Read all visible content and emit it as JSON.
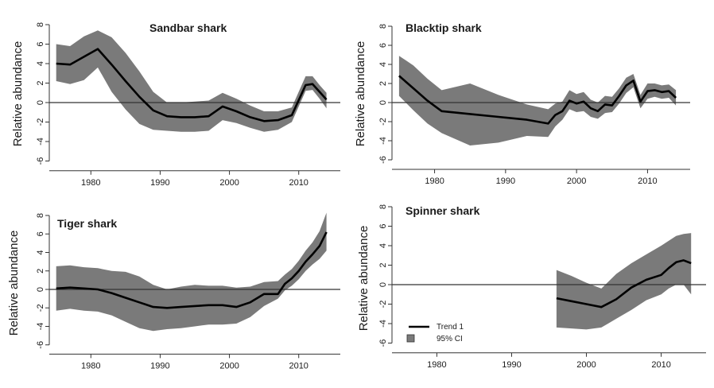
{
  "legend": {
    "trend_label": "Trend 1",
    "ci_label": "95% CI"
  },
  "colors": {
    "band": "#7a7a7a",
    "line": "#000000"
  },
  "chart_data": [
    {
      "type": "line",
      "title": "Sandbar shark",
      "ylabel": "Relative abundance",
      "xlabel": "",
      "xlim": [
        1974,
        2016
      ],
      "ylim": [
        -7,
        8
      ],
      "xticks": [
        1980,
        1990,
        2000,
        2010
      ],
      "yticks": [
        -6,
        -4,
        -2,
        0,
        2,
        4,
        6,
        8
      ],
      "reference_line": 0,
      "series": [
        {
          "x": [
            1975,
            1977,
            1979,
            1981,
            1983,
            1985,
            1987,
            1989,
            1991,
            1993,
            1995,
            1997,
            1999,
            2001,
            2003,
            2005,
            2007,
            2009,
            2011,
            2012,
            2013,
            2014
          ],
          "y": [
            4.0,
            3.9,
            4.7,
            5.5,
            3.9,
            2.2,
            0.6,
            -0.8,
            -1.4,
            -1.5,
            -1.5,
            -1.4,
            -0.4,
            -0.9,
            -1.5,
            -1.9,
            -1.8,
            -1.3,
            1.8,
            1.9,
            1.1,
            0.3
          ],
          "lower": [
            2.2,
            1.9,
            2.3,
            3.6,
            1.1,
            -0.7,
            -2.2,
            -2.8,
            -2.9,
            -3.0,
            -3.0,
            -2.9,
            -1.8,
            -2.1,
            -2.6,
            -3.0,
            -2.8,
            -2.0,
            1.2,
            1.3,
            0.4,
            -0.6
          ],
          "upper": [
            6.0,
            5.8,
            6.8,
            7.4,
            6.7,
            5.1,
            3.2,
            1.1,
            0.0,
            0.0,
            0.1,
            0.2,
            1.0,
            0.4,
            -0.3,
            -0.9,
            -0.9,
            -0.5,
            2.7,
            2.7,
            1.8,
            1.0
          ]
        }
      ],
      "legend": false
    },
    {
      "type": "line",
      "title": "Blacktip shark",
      "ylabel": "Relative abundance",
      "xlabel": "",
      "xlim": [
        1974,
        2016
      ],
      "ylim": [
        -7,
        8
      ],
      "xticks": [
        1980,
        1990,
        2000,
        2010
      ],
      "yticks": [
        -6,
        -4,
        -2,
        0,
        2,
        4,
        6,
        8
      ],
      "reference_line": 0,
      "series": [
        {
          "x": [
            1975,
            1977,
            1979,
            1981,
            1985,
            1989,
            1993,
            1996,
            1997,
            1998,
            1999,
            2000,
            2001,
            2002,
            2003,
            2004,
            2005,
            2006,
            2007,
            2008,
            2009,
            2010,
            2011,
            2012,
            2013,
            2014
          ],
          "y": [
            2.8,
            1.5,
            0.2,
            -0.9,
            -1.2,
            -1.5,
            -1.8,
            -2.2,
            -1.3,
            -0.9,
            0.2,
            -0.1,
            0.1,
            -0.6,
            -0.9,
            -0.2,
            -0.3,
            0.7,
            1.8,
            2.3,
            0.1,
            1.2,
            1.3,
            1.1,
            1.2,
            0.5
          ],
          "lower": [
            0.7,
            -0.8,
            -2.2,
            -3.2,
            -4.5,
            -4.2,
            -3.5,
            -3.6,
            -2.5,
            -1.8,
            -0.7,
            -1.0,
            -0.9,
            -1.5,
            -1.7,
            -1.1,
            -1.0,
            -0.1,
            1.0,
            1.6,
            -0.6,
            0.4,
            0.6,
            0.4,
            0.5,
            -0.3
          ],
          "upper": [
            4.9,
            3.9,
            2.5,
            1.3,
            2.0,
            0.8,
            -0.2,
            -0.7,
            -0.1,
            0.1,
            1.3,
            0.9,
            1.1,
            0.3,
            0.0,
            0.7,
            0.6,
            1.5,
            2.6,
            3.0,
            0.8,
            2.0,
            2.0,
            1.8,
            1.9,
            1.3
          ]
        }
      ],
      "legend": false
    },
    {
      "type": "line",
      "title": "Tiger shark",
      "ylabel": "Relative abundance",
      "xlabel": "",
      "xlim": [
        1974,
        2016
      ],
      "ylim": [
        -7,
        8
      ],
      "xticks": [
        1980,
        1990,
        2000,
        2010
      ],
      "yticks": [
        -6,
        -4,
        -2,
        0,
        2,
        4,
        6,
        8
      ],
      "reference_line": 0,
      "series": [
        {
          "x": [
            1975,
            1977,
            1979,
            1981,
            1983,
            1985,
            1987,
            1989,
            1991,
            1993,
            1995,
            1997,
            1999,
            2001,
            2003,
            2005,
            2007,
            2008,
            2009,
            2010,
            2011,
            2012,
            2013,
            2014
          ],
          "y": [
            0.1,
            0.2,
            0.1,
            0.0,
            -0.4,
            -0.9,
            -1.4,
            -1.9,
            -2.0,
            -1.9,
            -1.8,
            -1.7,
            -1.7,
            -1.9,
            -1.4,
            -0.5,
            -0.5,
            0.6,
            1.2,
            2.0,
            3.0,
            3.8,
            4.7,
            6.2
          ],
          "lower": [
            -2.3,
            -2.1,
            -2.3,
            -2.4,
            -2.8,
            -3.5,
            -4.2,
            -4.5,
            -4.3,
            -4.2,
            -4.0,
            -3.8,
            -3.8,
            -3.7,
            -3.0,
            -1.8,
            -1.0,
            -0.1,
            0.4,
            1.1,
            2.0,
            2.7,
            3.3,
            4.2
          ],
          "upper": [
            2.5,
            2.6,
            2.4,
            2.3,
            2.0,
            1.9,
            1.4,
            0.5,
            0.0,
            0.3,
            0.5,
            0.4,
            0.4,
            0.2,
            0.3,
            0.8,
            0.9,
            1.6,
            2.2,
            3.1,
            4.2,
            5.1,
            6.3,
            8.3
          ]
        }
      ],
      "legend": false
    },
    {
      "type": "line",
      "title": "Spinner shark",
      "ylabel": "Relative abundance",
      "xlabel": "",
      "xlim": [
        1974,
        2016
      ],
      "ylim": [
        -7,
        8
      ],
      "xticks": [
        1980,
        1990,
        2000,
        2010
      ],
      "yticks": [
        -6,
        -4,
        -2,
        0,
        2,
        4,
        6,
        8
      ],
      "reference_line": 0,
      "series": [
        {
          "x": [
            1996,
            1998,
            2000,
            2002,
            2004,
            2006,
            2008,
            2010,
            2011,
            2012,
            2013,
            2014
          ],
          "y": [
            -1.4,
            -1.7,
            -2.0,
            -2.3,
            -1.5,
            -0.3,
            0.5,
            1.0,
            1.7,
            2.3,
            2.5,
            2.2
          ],
          "lower": [
            -4.4,
            -4.5,
            -4.6,
            -4.4,
            -3.5,
            -2.6,
            -1.6,
            -1.0,
            -0.4,
            0.0,
            0.0,
            -1.0
          ],
          "upper": [
            1.5,
            0.9,
            0.2,
            -0.4,
            1.1,
            2.2,
            3.1,
            4.0,
            4.5,
            5.0,
            5.2,
            5.3
          ]
        }
      ],
      "legend": true
    }
  ]
}
